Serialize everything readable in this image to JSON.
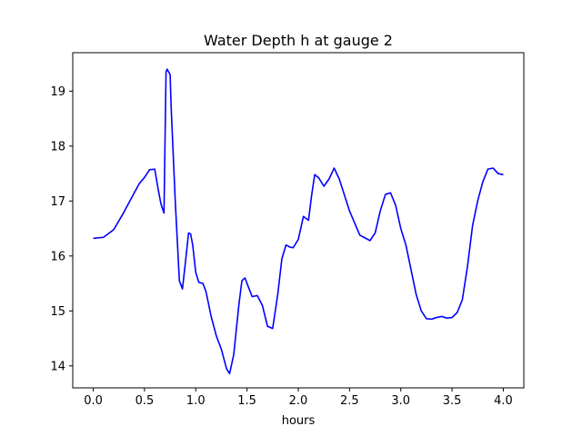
{
  "chart_data": {
    "type": "line",
    "title": "Water Depth h at gauge 2",
    "xlabel": "hours",
    "ylabel": "",
    "xlim": [
      -0.2,
      4.2
    ],
    "ylim": [
      13.6,
      19.7
    ],
    "xticks": [
      0.0,
      0.5,
      1.0,
      1.5,
      2.0,
      2.5,
      3.0,
      3.5,
      4.0
    ],
    "xtick_labels": [
      "0.0",
      "0.5",
      "1.0",
      "1.5",
      "2.0",
      "2.5",
      "3.0",
      "3.5",
      "4.0"
    ],
    "yticks": [
      14,
      15,
      16,
      17,
      18,
      19
    ],
    "ytick_labels": [
      "14",
      "15",
      "16",
      "17",
      "18",
      "19"
    ],
    "grid": false,
    "series": [
      {
        "color": "#0000ff",
        "x": [
          0.0,
          0.1,
          0.2,
          0.3,
          0.4,
          0.45,
          0.5,
          0.55,
          0.6,
          0.63,
          0.66,
          0.69,
          0.71,
          0.72,
          0.735,
          0.75,
          0.76,
          0.8,
          0.84,
          0.87,
          0.9,
          0.93,
          0.95,
          0.97,
          1.0,
          1.03,
          1.07,
          1.1,
          1.15,
          1.2,
          1.25,
          1.3,
          1.33,
          1.37,
          1.42,
          1.45,
          1.48,
          1.5,
          1.55,
          1.6,
          1.65,
          1.7,
          1.75,
          1.8,
          1.84,
          1.88,
          1.92,
          1.95,
          2.0,
          2.05,
          2.1,
          2.13,
          2.16,
          2.2,
          2.25,
          2.3,
          2.35,
          2.4,
          2.5,
          2.6,
          2.65,
          2.7,
          2.75,
          2.8,
          2.85,
          2.9,
          2.95,
          3.0,
          3.05,
          3.1,
          3.15,
          3.2,
          3.25,
          3.3,
          3.35,
          3.4,
          3.45,
          3.5,
          3.55,
          3.6,
          3.65,
          3.7,
          3.75,
          3.8,
          3.85,
          3.9,
          3.95,
          4.0
        ],
        "y": [
          16.32,
          16.34,
          16.48,
          16.8,
          17.15,
          17.32,
          17.43,
          17.57,
          17.58,
          17.25,
          16.95,
          16.78,
          19.35,
          19.4,
          19.35,
          19.3,
          18.7,
          17.0,
          15.55,
          15.4,
          15.9,
          16.42,
          16.4,
          16.2,
          15.7,
          15.52,
          15.5,
          15.35,
          14.9,
          14.55,
          14.3,
          13.95,
          13.86,
          14.2,
          15.1,
          15.55,
          15.6,
          15.5,
          15.26,
          15.28,
          15.1,
          14.72,
          14.68,
          15.3,
          15.95,
          16.2,
          16.16,
          16.15,
          16.3,
          16.72,
          16.65,
          17.1,
          17.48,
          17.42,
          17.27,
          17.4,
          17.6,
          17.4,
          16.82,
          16.38,
          16.33,
          16.28,
          16.42,
          16.82,
          17.12,
          17.15,
          16.92,
          16.5,
          16.2,
          15.75,
          15.3,
          15.0,
          14.86,
          14.85,
          14.88,
          14.9,
          14.87,
          14.88,
          14.97,
          15.2,
          15.8,
          16.55,
          17.0,
          17.35,
          17.58,
          17.6,
          17.5,
          17.48
        ]
      }
    ]
  }
}
